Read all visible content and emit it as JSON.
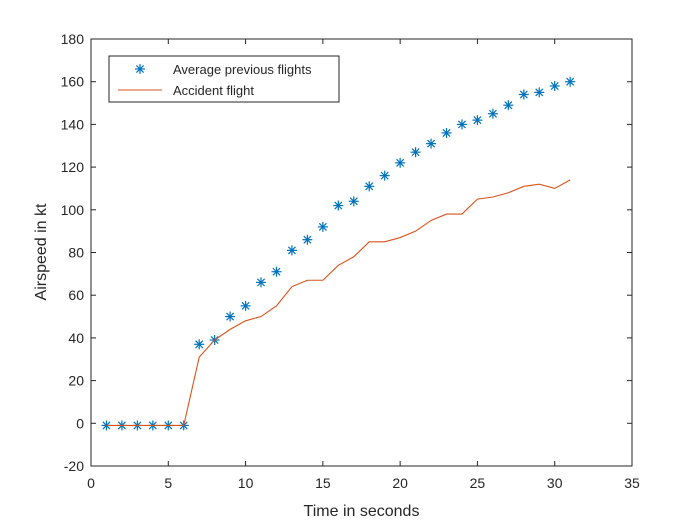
{
  "chart_data": {
    "type": "line",
    "title": "",
    "xlabel": "Time in seconds",
    "ylabel": "Airspeed in kt",
    "xlim": [
      0,
      35
    ],
    "ylim": [
      -20,
      180
    ],
    "xticks": [
      0,
      5,
      10,
      15,
      20,
      25,
      30,
      35
    ],
    "yticks": [
      -20,
      0,
      20,
      40,
      60,
      80,
      100,
      120,
      140,
      160,
      180
    ],
    "grid": false,
    "legend_position": "top-left",
    "series": [
      {
        "name": "Average previous flights",
        "style": "markers",
        "marker": "asterisk",
        "color": "#0072BD",
        "x": [
          1,
          2,
          3,
          4,
          5,
          6,
          7,
          8,
          9,
          10,
          11,
          12,
          13,
          14,
          15,
          16,
          17,
          18,
          19,
          20,
          21,
          22,
          23,
          24,
          25,
          26,
          27,
          28,
          29,
          30,
          31
        ],
        "values": [
          -1,
          -1,
          -1,
          -1,
          -1,
          -1,
          37,
          39,
          50,
          55,
          66,
          71,
          81,
          86,
          92,
          102,
          104,
          111,
          116,
          122,
          127,
          131,
          136,
          140,
          142,
          145,
          149,
          154,
          155,
          158,
          160
        ]
      },
      {
        "name": "Accident flight",
        "style": "line",
        "color": "#D95319",
        "x": [
          1,
          2,
          3,
          4,
          5,
          6,
          7,
          8,
          9,
          10,
          11,
          12,
          13,
          14,
          15,
          16,
          17,
          18,
          19,
          20,
          21,
          22,
          23,
          24,
          25,
          26,
          27,
          28,
          29,
          30,
          31
        ],
        "values": [
          -1,
          -1,
          -1,
          -1,
          -1,
          -1,
          31,
          39,
          44,
          48,
          50,
          55,
          64,
          67,
          67,
          74,
          78,
          85,
          85,
          87,
          90,
          95,
          98,
          98,
          105,
          106,
          108,
          111,
          112,
          110,
          114
        ]
      }
    ]
  }
}
